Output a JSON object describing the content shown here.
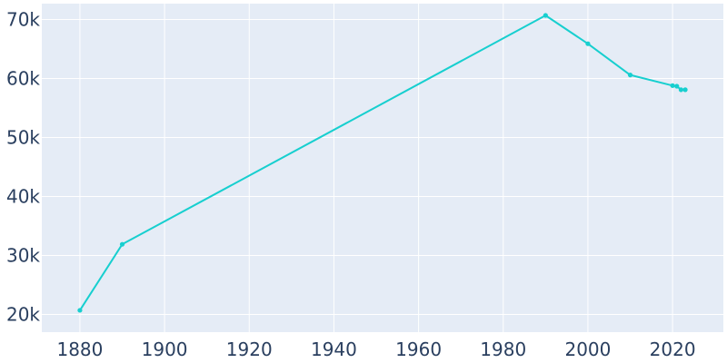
{
  "chart_data": {
    "type": "line",
    "title": "",
    "xlabel": "",
    "ylabel": "",
    "xlim": [
      1871,
      2032
    ],
    "ylim": [
      17000,
      72700
    ],
    "x_ticks": [
      1880,
      1900,
      1920,
      1940,
      1960,
      1980,
      2000,
      2020
    ],
    "x_tick_labels": [
      "1880",
      "1900",
      "1920",
      "1940",
      "1960",
      "1980",
      "2000",
      "2020"
    ],
    "y_ticks": [
      20000,
      30000,
      40000,
      50000,
      60000,
      70000
    ],
    "y_tick_labels": [
      "20k",
      "30k",
      "40k",
      "50k",
      "60k",
      "70k"
    ],
    "grid": true,
    "legend": false,
    "colors": {
      "plot_background": "#e5ecf6",
      "grid": "#ffffff",
      "line": "#17cfcf",
      "tick_text": "#2a3f5f"
    },
    "series": [
      {
        "x": [
          1880,
          1890,
          1990,
          2000,
          2010,
          2020,
          2021,
          2022,
          2023
        ],
        "y": [
          20700,
          31900,
          70700,
          65900,
          60600,
          58800,
          58700,
          58100,
          58100
        ]
      }
    ]
  }
}
